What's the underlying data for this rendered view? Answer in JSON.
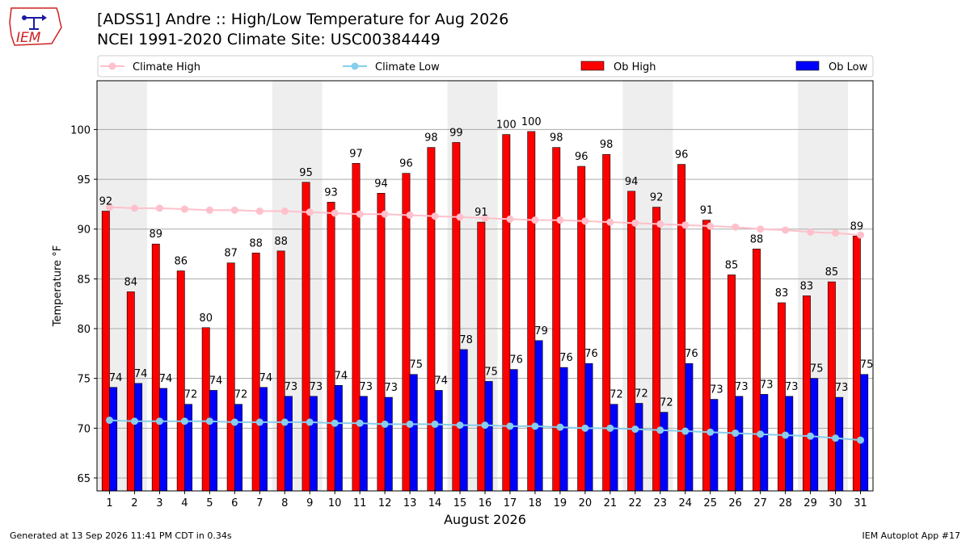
{
  "header": {
    "title_line1": "[ADSS1] Andre :: High/Low Temperature for Aug 2026",
    "title_line2": "NCEI 1991-2020 Climate Site: USC00384449",
    "logo_text": "IEM"
  },
  "footer": {
    "generated": "Generated at 13 Sep 2026 11:41 PM CDT in 0.34s",
    "app": "IEM Autoplot App #17"
  },
  "colors": {
    "ob_high": "#ff0000",
    "ob_low": "#0000ff",
    "climate_high": "#ffc0cb",
    "climate_low": "#87ceeb",
    "weekend_shade": "#eeeeee",
    "grid": "#aaaaaa"
  },
  "chart_data": {
    "type": "bar",
    "xlabel": "August 2026",
    "ylabel": "Temperature °F",
    "ylim": [
      63.7,
      104.9
    ],
    "yticks": [
      65,
      70,
      75,
      80,
      85,
      90,
      95,
      100
    ],
    "grid": true,
    "legend_position": "top",
    "x": [
      1,
      2,
      3,
      4,
      5,
      6,
      7,
      8,
      9,
      10,
      11,
      12,
      13,
      14,
      15,
      16,
      17,
      18,
      19,
      20,
      21,
      22,
      23,
      24,
      25,
      26,
      27,
      28,
      29,
      30,
      31
    ],
    "shaded_days": [
      [
        1,
        2
      ],
      [
        8,
        9
      ],
      [
        15,
        16
      ],
      [
        22,
        23
      ],
      [
        29,
        30
      ]
    ],
    "series": [
      {
        "name": "Climate High",
        "kind": "line",
        "values": [
          92.2,
          92.1,
          92.1,
          92.0,
          91.9,
          91.9,
          91.8,
          91.8,
          91.7,
          91.6,
          91.5,
          91.5,
          91.4,
          91.3,
          91.2,
          91.1,
          91.0,
          90.9,
          90.9,
          90.8,
          90.7,
          90.6,
          90.5,
          90.4,
          90.3,
          90.2,
          90.0,
          89.9,
          89.7,
          89.6,
          89.4
        ]
      },
      {
        "name": "Climate Low",
        "kind": "line",
        "values": [
          70.8,
          70.7,
          70.7,
          70.7,
          70.7,
          70.6,
          70.6,
          70.6,
          70.6,
          70.5,
          70.5,
          70.4,
          70.4,
          70.4,
          70.3,
          70.3,
          70.2,
          70.2,
          70.1,
          70.0,
          70.0,
          69.9,
          69.8,
          69.7,
          69.6,
          69.5,
          69.4,
          69.3,
          69.2,
          69.0,
          68.8
        ]
      },
      {
        "name": "Ob High",
        "kind": "bar",
        "values": [
          91.8,
          83.7,
          88.5,
          85.8,
          80.1,
          86.6,
          87.6,
          87.8,
          94.7,
          92.7,
          96.6,
          93.6,
          95.6,
          98.2,
          98.7,
          90.7,
          99.5,
          99.8,
          98.2,
          96.3,
          97.5,
          93.8,
          92.2,
          96.5,
          90.9,
          85.4,
          88.0,
          82.6,
          83.3,
          84.7,
          89.3
        ]
      },
      {
        "name": "Ob Low",
        "kind": "bar",
        "values": [
          74.1,
          74.5,
          74.0,
          72.4,
          73.8,
          72.4,
          74.1,
          73.2,
          73.2,
          74.3,
          73.2,
          73.1,
          75.4,
          73.8,
          77.9,
          74.7,
          75.9,
          78.8,
          76.1,
          76.5,
          72.4,
          72.5,
          71.6,
          76.5,
          72.9,
          73.2,
          73.4,
          73.2,
          75.0,
          73.1,
          75.4
        ]
      }
    ],
    "labels": {
      "ob_high": [
        "92",
        "84",
        "89",
        "86",
        "80",
        "87",
        "88",
        "88",
        "95",
        "93",
        "97",
        "94",
        "96",
        "98",
        "99",
        "91",
        "100",
        "100",
        "98",
        "96",
        "98",
        "94",
        "92",
        "96",
        "91",
        "85",
        "88",
        "83",
        "83",
        "85",
        "89"
      ],
      "ob_low": [
        "74",
        "74",
        "74",
        "72",
        "74",
        "72",
        "74",
        "73",
        "73",
        "74",
        "73",
        "73",
        "75",
        "74",
        "78",
        "75",
        "76",
        "79",
        "76",
        "76",
        "72",
        "72",
        "72",
        "76",
        "73",
        "73",
        "73",
        "73",
        "75",
        "73",
        "75"
      ]
    }
  }
}
